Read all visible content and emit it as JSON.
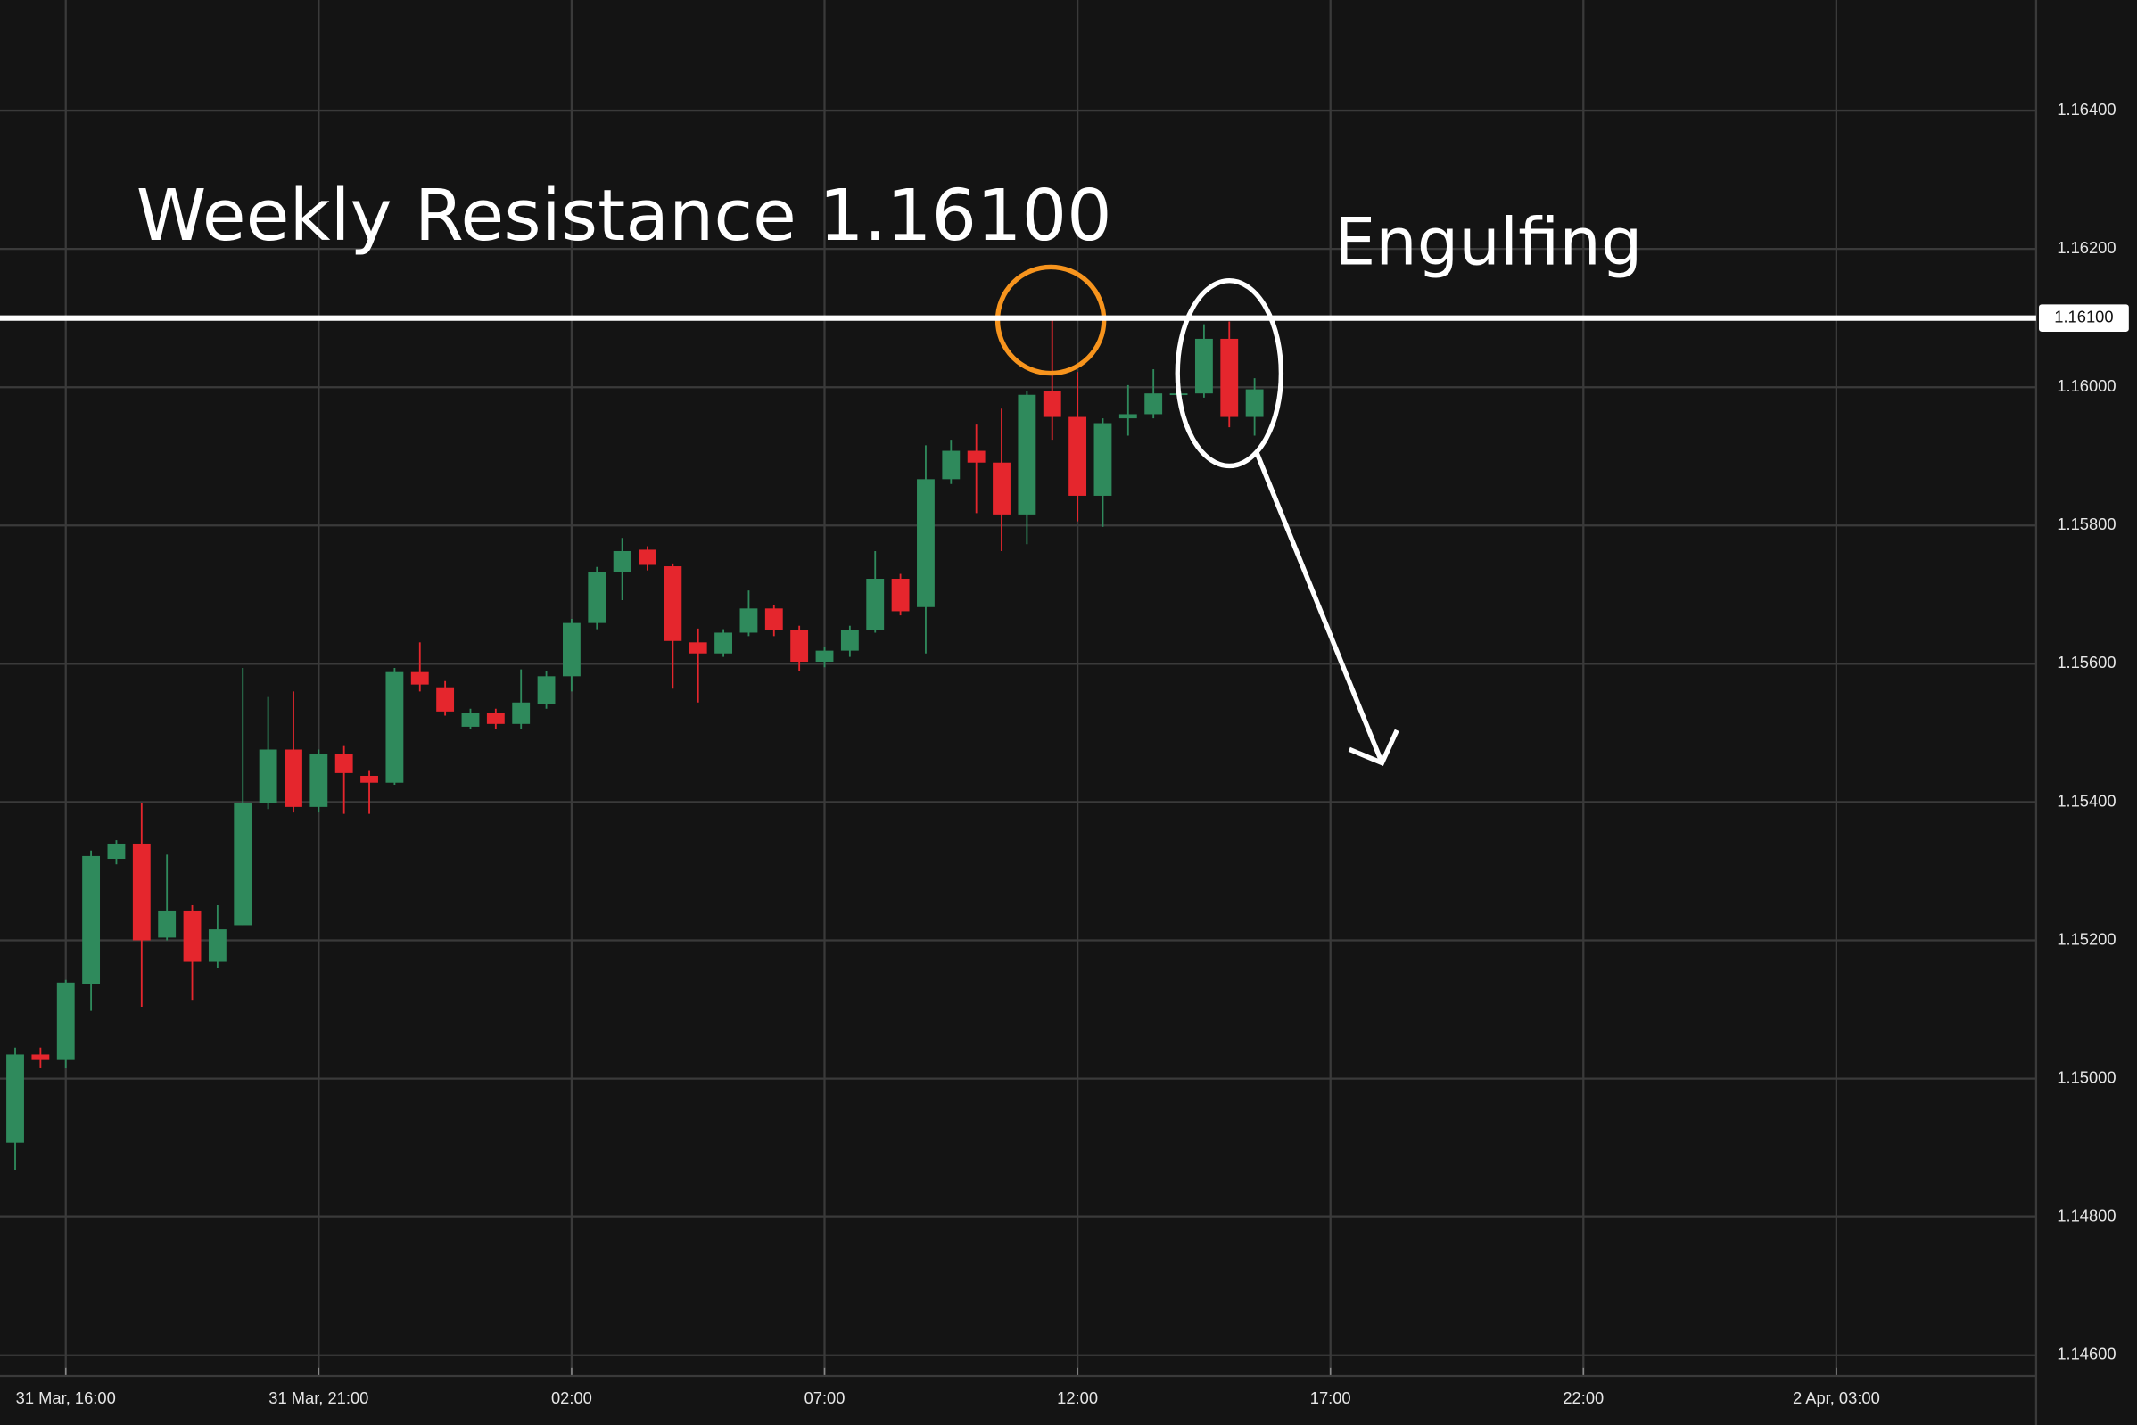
{
  "chart_data": {
    "type": "candlestick",
    "annotations": [
      "Weekly Resistance 1.16100",
      "Engulfing"
    ],
    "up_color": "#2f8a5c",
    "down_color": "#e5262d",
    "grid": true,
    "resistance": {
      "value": 1.161,
      "label": "1.16100",
      "color": "#ffffff"
    },
    "xlim": [
      -0.6,
      79.9
    ],
    "xticks": [
      {
        "value": 2,
        "label": "31 Mar, 16:00"
      },
      {
        "value": 12,
        "label": "31 Mar, 21:00"
      },
      {
        "value": 22,
        "label": "02:00"
      },
      {
        "value": 32,
        "label": "07:00"
      },
      {
        "value": 42,
        "label": "12:00"
      },
      {
        "value": 52,
        "label": "17:00"
      },
      {
        "value": 62,
        "label": "22:00"
      },
      {
        "value": 72,
        "label": "2 Apr, 03:00"
      }
    ],
    "ylim": [
      1.1457,
      1.1656
    ],
    "yticks": [
      {
        "value": 1.146,
        "label": "1.14600"
      },
      {
        "value": 1.148,
        "label": "1.14800"
      },
      {
        "value": 1.15,
        "label": "1.15000"
      },
      {
        "value": 1.152,
        "label": "1.15200"
      },
      {
        "value": 1.154,
        "label": "1.15400"
      },
      {
        "value": 1.156,
        "label": "1.15600"
      },
      {
        "value": 1.158,
        "label": "1.15800"
      },
      {
        "value": 1.16,
        "label": "1.16000"
      },
      {
        "value": 1.162,
        "label": "1.16200"
      },
      {
        "value": 1.164,
        "label": "1.16400"
      }
    ],
    "x": [
      0,
      1,
      2,
      3,
      4,
      5,
      6,
      7,
      8,
      9,
      10,
      11,
      12,
      13,
      14,
      15,
      16,
      17,
      18,
      19,
      20,
      21,
      22,
      23,
      24,
      25,
      26,
      27,
      28,
      29,
      30,
      31,
      32,
      33,
      34,
      35,
      36,
      37,
      38,
      39,
      40,
      41,
      42,
      43,
      44,
      45,
      46,
      47,
      48,
      49
    ],
    "open": [
      1.14907,
      1.15035,
      1.15027,
      1.15137,
      1.15318,
      1.1534,
      1.15204,
      1.15242,
      1.15169,
      1.15222,
      1.15399,
      1.15476,
      1.15393,
      1.1547,
      1.15438,
      1.15428,
      1.15588,
      1.15566,
      1.15509,
      1.15529,
      1.15513,
      1.15542,
      1.15582,
      1.15659,
      1.15733,
      1.15765,
      1.15741,
      1.15631,
      1.15615,
      1.15645,
      1.1568,
      1.15649,
      1.15603,
      1.15619,
      1.15649,
      1.15723,
      1.15682,
      1.15867,
      1.15908,
      1.15891,
      1.15816,
      1.15995,
      1.15957,
      1.15843,
      1.15955,
      1.15961,
      1.15991,
      1.15991,
      1.1607,
      1.15957
    ],
    "high": [
      1.15045,
      1.15045,
      1.15143,
      1.1533,
      1.15345,
      1.15399,
      1.15324,
      1.15251,
      1.15251,
      1.15594,
      1.15552,
      1.1556,
      1.15476,
      1.15481,
      1.15445,
      1.15594,
      1.15631,
      1.15575,
      1.15535,
      1.15535,
      1.15592,
      1.1559,
      1.15665,
      1.1574,
      1.15782,
      1.1577,
      1.15745,
      1.15651,
      1.1565,
      1.15706,
      1.15685,
      1.15655,
      1.15625,
      1.15655,
      1.15763,
      1.1573,
      1.15916,
      1.15924,
      1.15946,
      1.15969,
      1.15995,
      1.161,
      1.16022,
      1.15955,
      1.16003,
      1.16026,
      1.15995,
      1.16091,
      1.16095,
      1.16013
    ],
    "low": [
      1.14868,
      1.15015,
      1.15015,
      1.15098,
      1.1531,
      1.15104,
      1.152,
      1.15114,
      1.1516,
      1.15222,
      1.1539,
      1.15385,
      1.15385,
      1.15383,
      1.15383,
      1.15425,
      1.1556,
      1.15525,
      1.15505,
      1.15505,
      1.15505,
      1.15535,
      1.1556,
      1.1565,
      1.15692,
      1.15735,
      1.15564,
      1.15544,
      1.1561,
      1.1564,
      1.1564,
      1.1559,
      1.15595,
      1.1561,
      1.15645,
      1.1567,
      1.15615,
      1.1586,
      1.15818,
      1.15763,
      1.15773,
      1.15924,
      1.15806,
      1.15798,
      1.1593,
      1.15955,
      1.15985,
      1.15985,
      1.15942,
      1.1593
    ],
    "close": [
      1.15035,
      1.15027,
      1.15139,
      1.15322,
      1.1534,
      1.152,
      1.15242,
      1.15169,
      1.15216,
      1.15399,
      1.15476,
      1.15393,
      1.1547,
      1.15442,
      1.15428,
      1.15588,
      1.1557,
      1.15531,
      1.15529,
      1.15513,
      1.15544,
      1.15582,
      1.15659,
      1.15733,
      1.15763,
      1.15743,
      1.15633,
      1.15615,
      1.15645,
      1.1568,
      1.15649,
      1.15603,
      1.15619,
      1.15649,
      1.15723,
      1.15676,
      1.15867,
      1.15908,
      1.15891,
      1.15816,
      1.15989,
      1.15957,
      1.15843,
      1.15948,
      1.15961,
      1.15991,
      1.15991,
      1.1607,
      1.15957,
      1.15997
    ]
  }
}
